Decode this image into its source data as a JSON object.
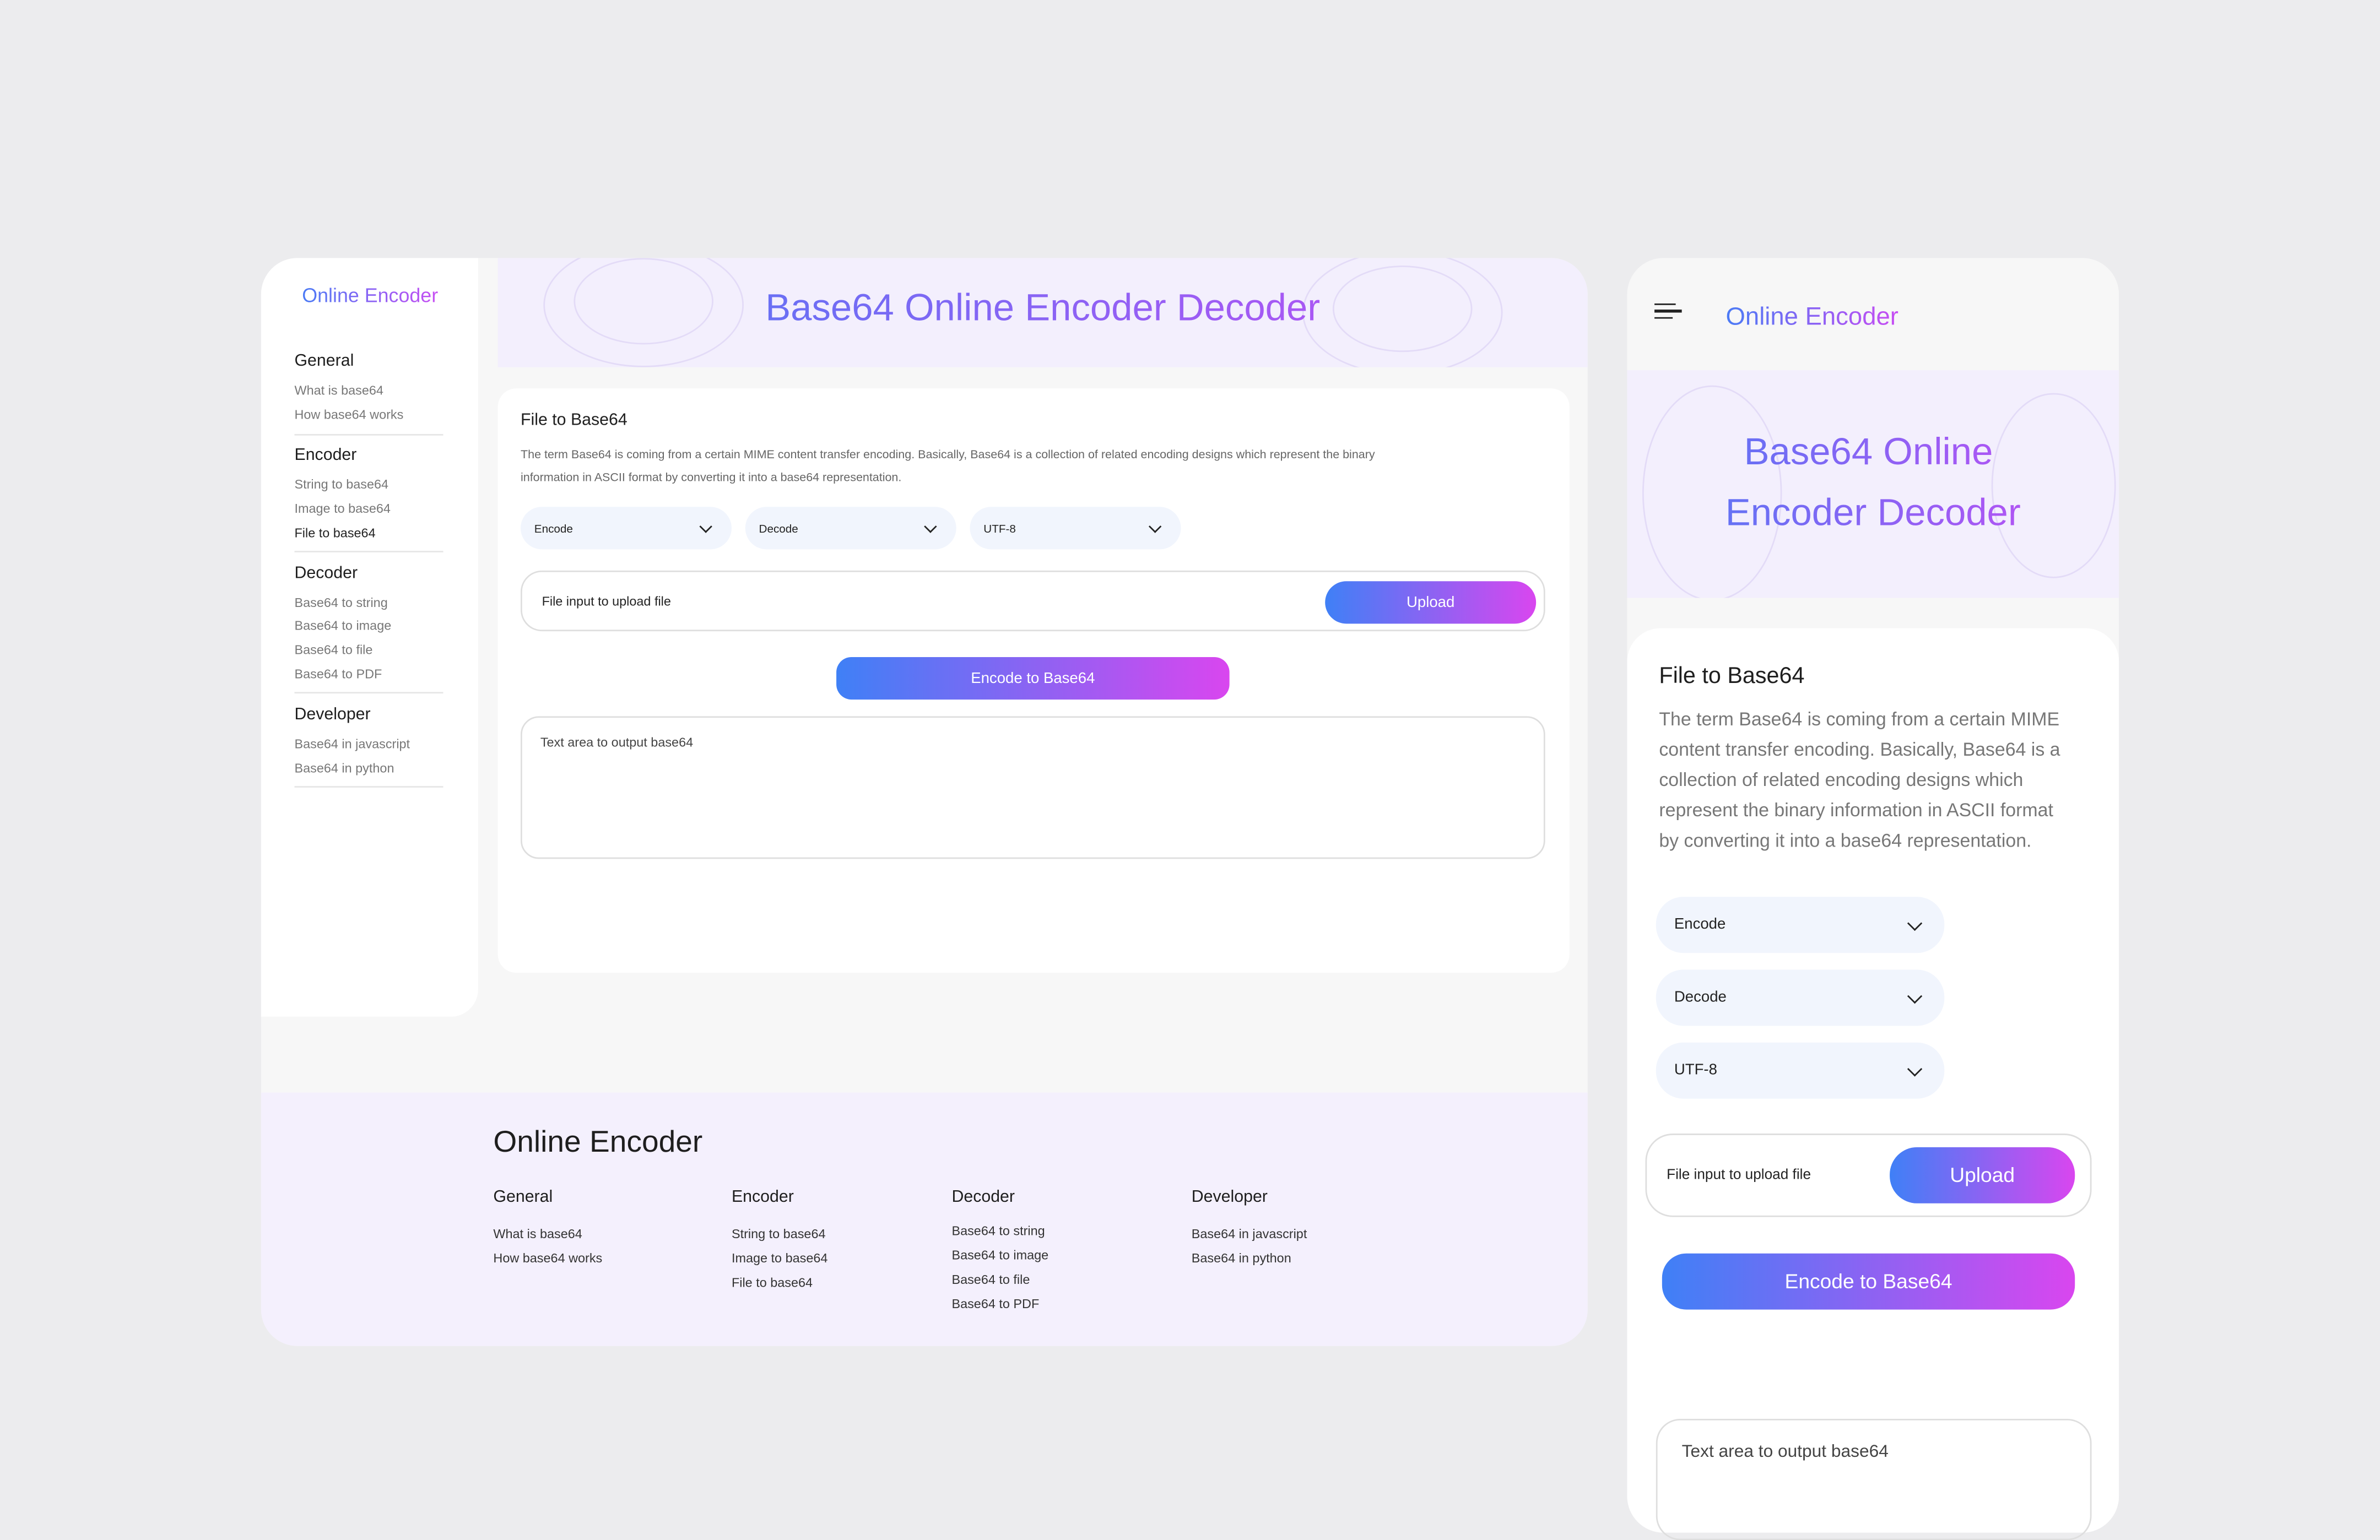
{
  "desktop": {
    "brand": "Online Encoder",
    "hero_title": "Base64 Online Encoder Decoder",
    "sidebar": [
      {
        "heading": "General",
        "items": [
          "What is base64",
          "How base64 works"
        ]
      },
      {
        "heading": "Encoder",
        "items": [
          "String to base64",
          "Image to base64",
          "File to base64"
        ]
      },
      {
        "heading": "Decoder",
        "items": [
          "Base64 to string",
          "Base64 to image",
          "Base64 to file",
          "Base64 to PDF"
        ]
      },
      {
        "heading": "Developer",
        "items": [
          "Base64 in javascript",
          "Base64 in python"
        ]
      }
    ],
    "active_item": "File to base64",
    "card": {
      "title": "File to Base64",
      "description": "The term Base64 is coming from a certain MIME content transfer encoding. Basically, Base64 is a collection of related encoding designs which represent the binary information in ASCII format by converting it into a base64 representation.",
      "selects": [
        "Encode",
        "Decode",
        "UTF-8"
      ],
      "file_input_label": "File input to upload file",
      "upload_label": "Upload",
      "encode_label": "Encode to Base64",
      "output_placeholder": "Text area to output base64"
    },
    "footer": {
      "brand": "Online Encoder",
      "columns": [
        {
          "heading": "General",
          "items": [
            "What is base64",
            "How base64 works"
          ]
        },
        {
          "heading": "Encoder",
          "items": [
            "String to base64",
            "Image to base64",
            "File to base64"
          ]
        },
        {
          "heading": "Decoder",
          "items": [
            "Base64 to string",
            "Base64 to image",
            "Base64 to file",
            "Base64 to PDF"
          ]
        },
        {
          "heading": "Developer",
          "items": [
            "Base64 in javascript",
            "Base64 in python"
          ]
        }
      ]
    }
  },
  "mobile": {
    "menu_icon": "hamburger-icon",
    "brand": "Online Encoder",
    "hero_line1": "Base64 Online",
    "hero_line2": "Encoder Decoder",
    "card": {
      "title": "File to Base64",
      "description": "The term Base64 is coming from a certain MIME content transfer encoding. Basically, Base64 is a collection of related encoding designs which represent the binary information in ASCII format by converting it into a base64 representation.",
      "selects": [
        "Encode",
        "Decode",
        "UTF-8"
      ],
      "file_input_label": "File input to upload file",
      "upload_label": "Upload",
      "encode_label": "Encode to Base64",
      "output_placeholder": "Text area to output base64"
    }
  },
  "colors": {
    "gradient_start": "#3f80f6",
    "gradient_end": "#d946ef",
    "hero_bg": "#f3effd",
    "select_bg": "#f1f5fd",
    "page_bg": "#ececee"
  }
}
